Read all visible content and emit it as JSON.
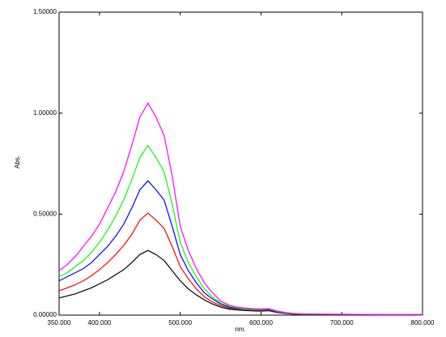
{
  "chart_data": {
    "type": "line",
    "xlabel": "nm.",
    "ylabel": "Abs.",
    "x": [
      350,
      360,
      370,
      380,
      390,
      400,
      410,
      420,
      430,
      440,
      450,
      460,
      470,
      480,
      490,
      500,
      510,
      520,
      530,
      540,
      550,
      560,
      570,
      580,
      590,
      600,
      610,
      620,
      630,
      640,
      650,
      700,
      750,
      800
    ],
    "series": [
      {
        "color": "#000000",
        "values": [
          0.085,
          0.095,
          0.105,
          0.12,
          0.135,
          0.155,
          0.175,
          0.2,
          0.225,
          0.26,
          0.3,
          0.32,
          0.3,
          0.27,
          0.22,
          0.17,
          0.13,
          0.1,
          0.075,
          0.055,
          0.04,
          0.03,
          0.026,
          0.023,
          0.021,
          0.02,
          0.022,
          0.013,
          0.008,
          0.005,
          0.004,
          0.003,
          0.002,
          0.002
        ]
      },
      {
        "color": "#ff0000",
        "values": [
          0.12,
          0.135,
          0.15,
          0.17,
          0.195,
          0.225,
          0.26,
          0.3,
          0.345,
          0.4,
          0.47,
          0.505,
          0.47,
          0.43,
          0.34,
          0.24,
          0.18,
          0.13,
          0.09,
          0.065,
          0.047,
          0.035,
          0.03,
          0.026,
          0.024,
          0.023,
          0.025,
          0.015,
          0.009,
          0.006,
          0.004,
          0.003,
          0.002,
          0.002
        ]
      },
      {
        "color": "#0000ff",
        "values": [
          0.17,
          0.19,
          0.21,
          0.23,
          0.26,
          0.3,
          0.34,
          0.39,
          0.45,
          0.53,
          0.62,
          0.665,
          0.62,
          0.57,
          0.44,
          0.3,
          0.22,
          0.16,
          0.11,
          0.08,
          0.055,
          0.04,
          0.033,
          0.028,
          0.026,
          0.025,
          0.027,
          0.016,
          0.01,
          0.007,
          0.005,
          0.003,
          0.002,
          0.002
        ]
      },
      {
        "color": "#00ff00",
        "values": [
          0.19,
          0.21,
          0.24,
          0.27,
          0.31,
          0.36,
          0.42,
          0.49,
          0.57,
          0.67,
          0.78,
          0.84,
          0.78,
          0.71,
          0.55,
          0.36,
          0.26,
          0.19,
          0.13,
          0.09,
          0.06,
          0.045,
          0.036,
          0.03,
          0.028,
          0.027,
          0.03,
          0.018,
          0.011,
          0.007,
          0.005,
          0.004,
          0.003,
          0.002
        ]
      },
      {
        "color": "#ff00ff",
        "values": [
          0.22,
          0.25,
          0.29,
          0.34,
          0.39,
          0.45,
          0.53,
          0.61,
          0.71,
          0.84,
          0.98,
          1.05,
          0.98,
          0.89,
          0.69,
          0.44,
          0.32,
          0.23,
          0.16,
          0.11,
          0.07,
          0.05,
          0.04,
          0.035,
          0.032,
          0.03,
          0.032,
          0.02,
          0.013,
          0.008,
          0.006,
          0.004,
          0.003,
          0.002
        ]
      }
    ],
    "xlim": [
      350,
      800
    ],
    "xticks": [
      {
        "value": 350,
        "label": "350.000"
      },
      {
        "value": 400,
        "label": "400.000"
      },
      {
        "value": 500,
        "label": "500.000"
      },
      {
        "value": 600,
        "label": "600.000"
      },
      {
        "value": 700,
        "label": "700.000"
      },
      {
        "value": 800,
        "label": "800.000"
      }
    ],
    "ylim": [
      0,
      1.5
    ],
    "yticks": [
      {
        "value": 0,
        "label": "0.00000"
      },
      {
        "value": 0.5,
        "label": "0.50000"
      },
      {
        "value": 1,
        "label": "1.00000"
      },
      {
        "value": 1.5,
        "label": "1.50000"
      }
    ],
    "grid": false
  }
}
